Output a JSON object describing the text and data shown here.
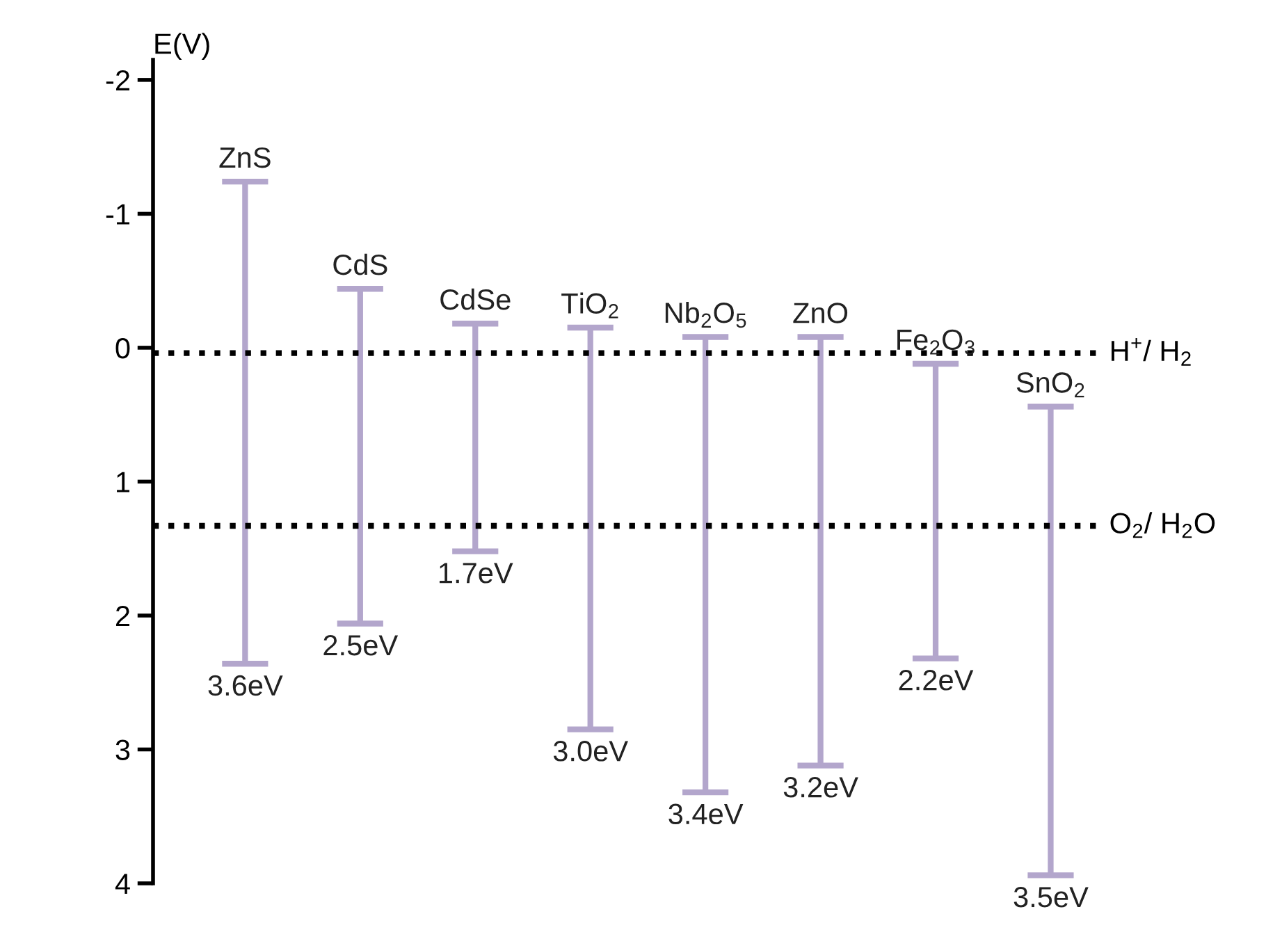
{
  "chart_data": {
    "type": "bar",
    "ylabel": "E(V)",
    "categories": [
      "ZnS",
      "CdS",
      "CdSe",
      "TiO$_{2}$",
      "Nb$_{2}$O$_{5}$",
      "ZnO",
      "Fe$_{2}$O$_{3}$",
      "SnO$_{2}$"
    ],
    "base": [
      -1.24,
      -0.44,
      -0.18,
      -0.15,
      -0.08,
      -0.08,
      0.12,
      0.44
    ],
    "values": [
      3.6,
      2.5,
      1.7,
      3.0,
      3.4,
      3.2,
      2.2,
      3.5
    ],
    "value_labels": [
      "3.6eV",
      "2.5eV",
      "1.7eV",
      "3.0eV",
      "3.4eV",
      "3.2eV",
      "2.2eV",
      "3.5eV"
    ],
    "color": "#b3a6cc",
    "ylim": [
      4,
      -2.15
    ],
    "yticks": [
      -2,
      -1,
      0,
      1,
      2,
      3,
      4
    ],
    "ref_lines": [
      {
        "axis": "y",
        "value": 0.04,
        "label": "H$^{+}$/ H$_{2}$",
        "color": "#000000",
        "line_style": "dotted"
      },
      {
        "axis": "y",
        "value": 1.33,
        "label": "O$_{2}$/ H$_{2}$O",
        "color": "#000000",
        "line_style": "dotted"
      }
    ],
    "tick_labels": "y",
    "grid": false,
    "legend": false
  }
}
